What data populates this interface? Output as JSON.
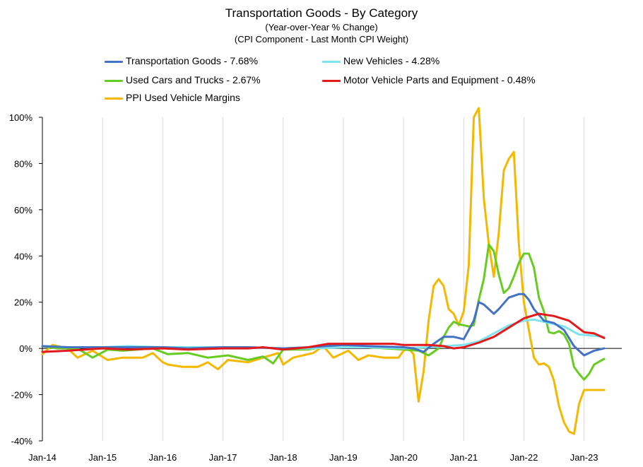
{
  "chart_data": {
    "type": "line",
    "title": "Transportation Goods - By Category",
    "subtitle_1": "(Year-over-Year % Change)",
    "subtitle_2": "(CPI Component - Last Month CPI Weight)",
    "xlabel": "",
    "ylabel": "",
    "ylim": [
      -0.4,
      1.0
    ],
    "y_ticks": [
      "100%",
      "80%",
      "60%",
      "40%",
      "20%",
      "0%",
      "-20%",
      "-40%"
    ],
    "x_ticks": [
      "Jan-14",
      "Jan-15",
      "Jan-16",
      "Jan-17",
      "Jan-18",
      "Jan-19",
      "Jan-20",
      "Jan-21",
      "Jan-22",
      "Jan-23"
    ],
    "x_range": [
      "2014-01",
      "2023-06"
    ],
    "grid": "vertical gridlines at each January",
    "legend_position": "top",
    "series": [
      {
        "name": "Transportation Goods - 7.68%",
        "color": "#4472c4",
        "points": [
          [
            "2014-01",
            0.01
          ],
          [
            "2014-06",
            0.005
          ],
          [
            "2015-01",
            0.005
          ],
          [
            "2015-06",
            0.005
          ],
          [
            "2016-01",
            0.005
          ],
          [
            "2016-06",
            0.0
          ],
          [
            "2017-01",
            0.005
          ],
          [
            "2017-06",
            0.005
          ],
          [
            "2018-01",
            0.0
          ],
          [
            "2018-06",
            0.005
          ],
          [
            "2019-01",
            0.015
          ],
          [
            "2019-06",
            0.01
          ],
          [
            "2020-01",
            0.005
          ],
          [
            "2020-03",
            0.0
          ],
          [
            "2020-05",
            -0.015
          ],
          [
            "2020-07",
            0.02
          ],
          [
            "2020-09",
            0.05
          ],
          [
            "2020-11",
            0.05
          ],
          [
            "2021-01",
            0.04
          ],
          [
            "2021-03",
            0.12
          ],
          [
            "2021-04",
            0.2
          ],
          [
            "2021-05",
            0.19
          ],
          [
            "2021-07",
            0.15
          ],
          [
            "2021-08",
            0.17
          ],
          [
            "2021-10",
            0.22
          ],
          [
            "2021-12",
            0.235
          ],
          [
            "2022-01",
            0.235
          ],
          [
            "2022-02",
            0.21
          ],
          [
            "2022-03",
            0.17
          ],
          [
            "2022-05",
            0.12
          ],
          [
            "2022-07",
            0.11
          ],
          [
            "2022-09",
            0.08
          ],
          [
            "2022-11",
            0.01
          ],
          [
            "2023-01",
            -0.03
          ],
          [
            "2023-03",
            -0.01
          ],
          [
            "2023-05",
            0.0
          ]
        ]
      },
      {
        "name": "New Vehicles - 4.28%",
        "color": "#7ee4f0",
        "points": [
          [
            "2014-01",
            0.01
          ],
          [
            "2014-06",
            0.005
          ],
          [
            "2015-01",
            0.005
          ],
          [
            "2015-06",
            0.01
          ],
          [
            "2016-01",
            0.005
          ],
          [
            "2016-06",
            0.005
          ],
          [
            "2017-01",
            0.005
          ],
          [
            "2017-06",
            0.005
          ],
          [
            "2018-01",
            0.0
          ],
          [
            "2018-06",
            0.0
          ],
          [
            "2019-01",
            0.005
          ],
          [
            "2019-06",
            0.005
          ],
          [
            "2020-01",
            0.0
          ],
          [
            "2020-06",
            0.005
          ],
          [
            "2020-09",
            0.01
          ],
          [
            "2021-01",
            0.015
          ],
          [
            "2021-04",
            0.03
          ],
          [
            "2021-07",
            0.065
          ],
          [
            "2021-10",
            0.1
          ],
          [
            "2022-01",
            0.12
          ],
          [
            "2022-03",
            0.125
          ],
          [
            "2022-06",
            0.11
          ],
          [
            "2022-09",
            0.095
          ],
          [
            "2022-12",
            0.06
          ],
          [
            "2023-03",
            0.055
          ],
          [
            "2023-05",
            0.05
          ]
        ]
      },
      {
        "name": "Used Cars and Trucks - 2.67%",
        "color": "#66cc22",
        "points": [
          [
            "2014-01",
            0.01
          ],
          [
            "2014-04",
            0.0
          ],
          [
            "2014-08",
            0.0
          ],
          [
            "2014-11",
            -0.04
          ],
          [
            "2015-02",
            -0.005
          ],
          [
            "2015-05",
            -0.01
          ],
          [
            "2015-08",
            -0.005
          ],
          [
            "2015-11",
            0.0
          ],
          [
            "2016-02",
            -0.025
          ],
          [
            "2016-06",
            -0.02
          ],
          [
            "2016-10",
            -0.04
          ],
          [
            "2017-02",
            -0.03
          ],
          [
            "2017-06",
            -0.05
          ],
          [
            "2017-09",
            -0.035
          ],
          [
            "2017-11",
            -0.065
          ],
          [
            "2018-01",
            -0.005
          ],
          [
            "2018-06",
            -0.005
          ],
          [
            "2018-10",
            0.01
          ],
          [
            "2019-01",
            0.015
          ],
          [
            "2019-06",
            0.005
          ],
          [
            "2020-01",
            -0.005
          ],
          [
            "2020-04",
            -0.01
          ],
          [
            "2020-06",
            -0.03
          ],
          [
            "2020-08",
            0.0
          ],
          [
            "2020-09",
            0.05
          ],
          [
            "2020-10",
            0.09
          ],
          [
            "2020-11",
            0.115
          ],
          [
            "2020-12",
            0.105
          ],
          [
            "2021-02",
            0.095
          ],
          [
            "2021-03",
            0.1
          ],
          [
            "2021-04",
            0.21
          ],
          [
            "2021-05",
            0.3
          ],
          [
            "2021-06",
            0.45
          ],
          [
            "2021-07",
            0.42
          ],
          [
            "2021-08",
            0.32
          ],
          [
            "2021-09",
            0.24
          ],
          [
            "2021-10",
            0.26
          ],
          [
            "2021-11",
            0.31
          ],
          [
            "2021-12",
            0.37
          ],
          [
            "2022-01",
            0.41
          ],
          [
            "2022-02",
            0.41
          ],
          [
            "2022-03",
            0.35
          ],
          [
            "2022-04",
            0.22
          ],
          [
            "2022-05",
            0.16
          ],
          [
            "2022-06",
            0.07
          ],
          [
            "2022-07",
            0.065
          ],
          [
            "2022-08",
            0.075
          ],
          [
            "2022-09",
            0.06
          ],
          [
            "2022-10",
            0.02
          ],
          [
            "2022-11",
            -0.08
          ],
          [
            "2022-12",
            -0.11
          ],
          [
            "2023-01",
            -0.135
          ],
          [
            "2023-02",
            -0.11
          ],
          [
            "2023-03",
            -0.07
          ],
          [
            "2023-05",
            -0.045
          ]
        ]
      },
      {
        "name": "Motor Vehicle Parts and Equipment - 0.48%",
        "color": "#e31a1c",
        "points": [
          [
            "2014-01",
            -0.015
          ],
          [
            "2014-06",
            -0.01
          ],
          [
            "2015-01",
            0.0
          ],
          [
            "2015-06",
            -0.005
          ],
          [
            "2016-01",
            0.0
          ],
          [
            "2016-06",
            -0.005
          ],
          [
            "2017-01",
            0.0
          ],
          [
            "2017-06",
            0.0
          ],
          [
            "2017-09",
            0.005
          ],
          [
            "2018-01",
            -0.005
          ],
          [
            "2018-06",
            0.005
          ],
          [
            "2018-10",
            0.02
          ],
          [
            "2019-01",
            0.02
          ],
          [
            "2019-06",
            0.02
          ],
          [
            "2019-11",
            0.02
          ],
          [
            "2020-01",
            0.015
          ],
          [
            "2020-06",
            0.015
          ],
          [
            "2020-09",
            0.01
          ],
          [
            "2020-11",
            0.0
          ],
          [
            "2021-01",
            0.005
          ],
          [
            "2021-04",
            0.025
          ],
          [
            "2021-07",
            0.05
          ],
          [
            "2021-10",
            0.09
          ],
          [
            "2022-01",
            0.13
          ],
          [
            "2022-04",
            0.15
          ],
          [
            "2022-07",
            0.14
          ],
          [
            "2022-10",
            0.12
          ],
          [
            "2023-01",
            0.07
          ],
          [
            "2023-03",
            0.065
          ],
          [
            "2023-05",
            0.045
          ]
        ]
      },
      {
        "name": "PPI Used Vehicle Margins",
        "color": "#f5b800",
        "points": [
          [
            "2014-01",
            -0.025
          ],
          [
            "2014-03",
            0.015
          ],
          [
            "2014-06",
            0.0
          ],
          [
            "2014-08",
            -0.04
          ],
          [
            "2014-11",
            -0.01
          ],
          [
            "2015-02",
            -0.05
          ],
          [
            "2015-05",
            -0.04
          ],
          [
            "2015-09",
            -0.04
          ],
          [
            "2015-11",
            -0.02
          ],
          [
            "2016-01",
            -0.06
          ],
          [
            "2016-02",
            -0.07
          ],
          [
            "2016-05",
            -0.08
          ],
          [
            "2016-08",
            -0.08
          ],
          [
            "2016-10",
            -0.06
          ],
          [
            "2016-12",
            -0.09
          ],
          [
            "2017-02",
            -0.05
          ],
          [
            "2017-06",
            -0.06
          ],
          [
            "2017-09",
            -0.04
          ],
          [
            "2017-12",
            -0.02
          ],
          [
            "2018-01",
            -0.07
          ],
          [
            "2018-03",
            -0.04
          ],
          [
            "2018-07",
            -0.02
          ],
          [
            "2018-09",
            0.01
          ],
          [
            "2018-11",
            -0.04
          ],
          [
            "2019-02",
            -0.01
          ],
          [
            "2019-04",
            -0.05
          ],
          [
            "2019-06",
            -0.03
          ],
          [
            "2019-09",
            -0.04
          ],
          [
            "2019-12",
            -0.04
          ],
          [
            "2020-01",
            -0.01
          ],
          [
            "2020-02",
            0.0
          ],
          [
            "2020-03",
            -0.025
          ],
          [
            "2020-04",
            -0.23
          ],
          [
            "2020-05",
            -0.1
          ],
          [
            "2020-06",
            0.12
          ],
          [
            "2020-07",
            0.27
          ],
          [
            "2020-08",
            0.3
          ],
          [
            "2020-09",
            0.27
          ],
          [
            "2020-10",
            0.17
          ],
          [
            "2020-11",
            0.15
          ],
          [
            "2020-12",
            0.1
          ],
          [
            "2021-01",
            0.16
          ],
          [
            "2021-02",
            0.36
          ],
          [
            "2021-03",
            1.0
          ],
          [
            "2021-04",
            1.04
          ],
          [
            "2021-05",
            0.65
          ],
          [
            "2021-06",
            0.45
          ],
          [
            "2021-07",
            0.31
          ],
          [
            "2021-08",
            0.5
          ],
          [
            "2021-09",
            0.77
          ],
          [
            "2021-10",
            0.82
          ],
          [
            "2021-11",
            0.85
          ],
          [
            "2021-12",
            0.45
          ],
          [
            "2022-01",
            0.2
          ],
          [
            "2022-03",
            -0.04
          ],
          [
            "2022-04",
            -0.07
          ],
          [
            "2022-05",
            -0.065
          ],
          [
            "2022-06",
            -0.08
          ],
          [
            "2022-07",
            -0.14
          ],
          [
            "2022-08",
            -0.25
          ],
          [
            "2022-09",
            -0.32
          ],
          [
            "2022-10",
            -0.36
          ],
          [
            "2022-11",
            -0.37
          ],
          [
            "2022-12",
            -0.24
          ],
          [
            "2023-01",
            -0.18
          ],
          [
            "2023-05",
            -0.18
          ]
        ]
      }
    ]
  }
}
